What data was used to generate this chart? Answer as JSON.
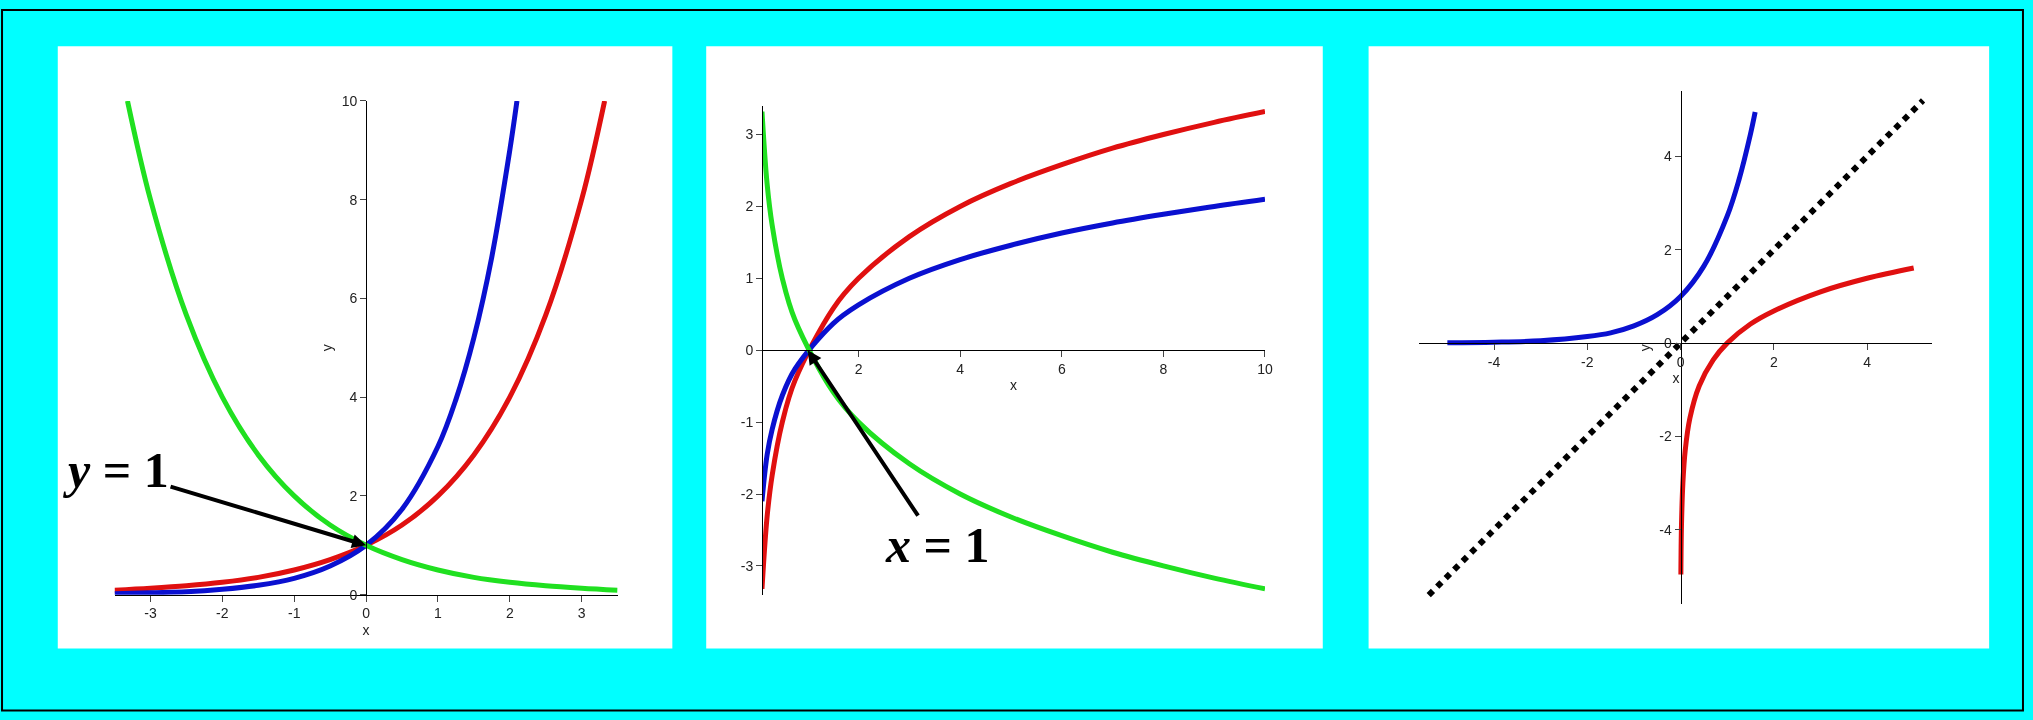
{
  "chart_data": [
    {
      "type": "line",
      "xlabel": "x",
      "ylabel": "y",
      "xlim": [
        -3.5,
        3.5
      ],
      "ylim": [
        0,
        10
      ],
      "xticks": [
        -3,
        -2,
        -1,
        0,
        1,
        2,
        3
      ],
      "yticks": [
        0,
        2,
        4,
        6,
        8,
        10
      ],
      "marker": "none",
      "line_style": "solid",
      "annotations": [
        {
          "text": "y = 1",
          "x": 0,
          "y": 1
        }
      ],
      "series": [
        {
          "color": "#e01010",
          "x": [
            -3.5,
            -3,
            -2.5,
            -2,
            -1.5,
            -1,
            -0.5,
            0,
            0.5,
            1,
            1.5,
            2,
            2.5,
            3,
            3.32
          ],
          "values": [
            0.09,
            0.13,
            0.18,
            0.25,
            0.35,
            0.5,
            0.71,
            1,
            1.41,
            2,
            2.83,
            4,
            5.66,
            8,
            10
          ]
        },
        {
          "color": "#0a10d0",
          "x": [
            -3.5,
            -3,
            -2.5,
            -2,
            -1.5,
            -1,
            -0.5,
            0,
            0.5,
            1,
            1.25,
            1.5,
            1.75,
            2,
            2.1
          ],
          "values": [
            0.02,
            0.04,
            0.06,
            0.11,
            0.19,
            0.33,
            0.58,
            1,
            1.73,
            3,
            3.95,
            5.2,
            6.84,
            9,
            10
          ]
        },
        {
          "color": "#20e020",
          "x": [
            -3.32,
            -3,
            -2.5,
            -2,
            -1.5,
            -1,
            -0.5,
            0,
            0.5,
            1,
            1.5,
            2,
            2.5,
            3,
            3.5
          ],
          "values": [
            10,
            8,
            5.66,
            4,
            2.83,
            2,
            1.41,
            1,
            0.71,
            0.5,
            0.35,
            0.25,
            0.18,
            0.13,
            0.09
          ]
        }
      ]
    },
    {
      "type": "line",
      "xlabel": "x",
      "xlim": [
        0.1,
        10
      ],
      "ylim": [
        -3.4,
        3.4
      ],
      "xticks": [
        2,
        4,
        6,
        8,
        10
      ],
      "yticks": [
        -3,
        -2,
        -1,
        0,
        1,
        2,
        3
      ],
      "marker": "none",
      "line_style": "solid",
      "annotations": [
        {
          "text": "x = 1",
          "x": 1,
          "y": 0
        }
      ],
      "series": [
        {
          "color": "#e01010",
          "x": [
            0.1,
            0.2,
            0.3,
            0.5,
            0.75,
            1.5,
            2,
            3,
            4,
            5,
            6,
            7,
            8,
            9,
            10
          ],
          "values": [
            -3.32,
            -2.32,
            -1.74,
            -1,
            -0.42,
            0.58,
            1,
            1.58,
            2,
            2.32,
            2.58,
            2.81,
            3,
            3.17,
            3.32
          ]
        },
        {
          "color": "#0a10d0",
          "x": [
            0.1,
            0.2,
            0.3,
            0.5,
            0.75,
            1.5,
            2,
            3,
            4,
            5,
            6,
            7,
            8,
            9,
            10
          ],
          "values": [
            -2.1,
            -1.46,
            -1.1,
            -0.63,
            -0.26,
            0.37,
            0.63,
            1,
            1.26,
            1.46,
            1.63,
            1.77,
            1.89,
            2,
            2.1
          ]
        },
        {
          "color": "#20e020",
          "x": [
            0.1,
            0.2,
            0.3,
            0.5,
            0.75,
            1.5,
            2,
            3,
            4,
            5,
            6,
            7,
            8,
            9,
            10
          ],
          "values": [
            3.32,
            2.32,
            1.74,
            1,
            0.42,
            -0.58,
            -1,
            -1.58,
            -2,
            -2.32,
            -2.58,
            -2.81,
            -3,
            -3.17,
            -3.32
          ]
        }
      ]
    },
    {
      "type": "line",
      "xlabel": "x",
      "ylabel": "y",
      "xlim": [
        -5.6,
        5.4
      ],
      "ylim": [
        -5.6,
        5.4
      ],
      "xticks": [
        -4,
        -2,
        0,
        2,
        4
      ],
      "yticks": [
        -4,
        -2,
        0,
        2,
        4
      ],
      "marker": "none",
      "line_style": "solid",
      "series": [
        {
          "color": "#0a10d0",
          "x": [
            -5,
            -4,
            -3,
            -2,
            -1.5,
            -1,
            -0.5,
            0,
            0.5,
            1,
            1.25,
            1.5,
            1.6
          ],
          "values": [
            0.01,
            0.02,
            0.05,
            0.14,
            0.22,
            0.37,
            0.61,
            1,
            1.65,
            2.72,
            3.49,
            4.48,
            4.95
          ]
        },
        {
          "color": "#e01010",
          "x": [
            0.007,
            0.02,
            0.05,
            0.1,
            0.2,
            0.4,
            0.7,
            1,
            1.5,
            2,
            3,
            4,
            5
          ],
          "values": [
            -4.96,
            -3.91,
            -3,
            -2.3,
            -1.61,
            -0.92,
            -0.36,
            0,
            0.41,
            0.69,
            1.1,
            1.39,
            1.61
          ]
        },
        {
          "color": "#000000",
          "line_style": "dotted",
          "x": [
            -5.4,
            5.2
          ],
          "values": [
            -5.4,
            5.2
          ]
        }
      ]
    }
  ]
}
